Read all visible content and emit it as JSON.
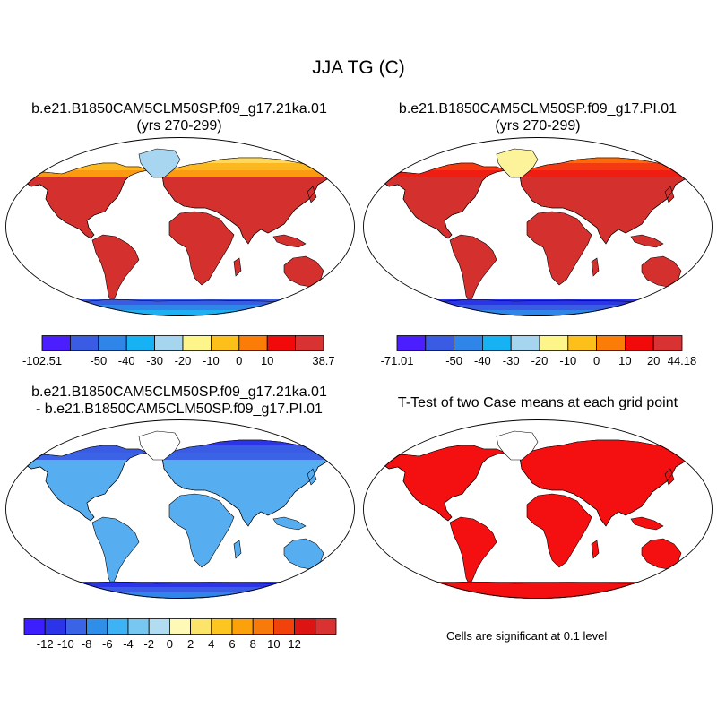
{
  "figure": {
    "title": "JJA TG (C)"
  },
  "panels": {
    "top_left": {
      "title_line1": "b.e21.B1850CAM5CLM50SP.f09_g17.21ka.01",
      "title_line2": "(yrs 270-299)"
    },
    "top_right": {
      "title_line1": "b.e21.B1850CAM5CLM50SP.f09_g17.PI.01",
      "title_line2": "(yrs 270-299)"
    },
    "bottom_left": {
      "title_line1": "b.e21.B1850CAM5CLM50SP.f09_g17.21ka.01",
      "title_line2": "- b.e21.B1850CAM5CLM50SP.f09_g17.PI.01"
    },
    "bottom_right": {
      "title_line1": "T-Test of two Case means at each grid point",
      "note": "Cells are significant at 0.1 level"
    }
  },
  "colorbars": {
    "top_left": {
      "colors": [
        "#4a1eff",
        "#3a5be3",
        "#2f86e8",
        "#16b2f4",
        "#a6d5f0",
        "#fdf58a",
        "#fdbf1a",
        "#fb7d08",
        "#f20a0a",
        "#d83232"
      ],
      "labels": [
        "-102.51",
        "-50",
        "-40",
        "-30",
        "-20",
        "-10",
        "0",
        "10",
        "38.7"
      ],
      "label_edges": [
        0,
        2,
        3,
        4,
        5,
        6,
        7,
        8,
        10
      ]
    },
    "top_right": {
      "colors": [
        "#4a1eff",
        "#3a5be3",
        "#2f86e8",
        "#16b2f4",
        "#a6d5f0",
        "#fdf58a",
        "#fdbf1a",
        "#fb7d08",
        "#f20a0a",
        "#d83232"
      ],
      "labels": [
        "-71.01",
        "-50",
        "-40",
        "-30",
        "-20",
        "-10",
        "0",
        "10",
        "20",
        "44.18"
      ],
      "label_edges": [
        0,
        2,
        3,
        4,
        5,
        6,
        7,
        8,
        9,
        10
      ]
    },
    "bottom_left": {
      "colors": [
        "#3d1eff",
        "#2b34e6",
        "#3b63e6",
        "#2f8ee8",
        "#3db2f5",
        "#77c7f0",
        "#b2dcf2",
        "#fef9b6",
        "#fce46a",
        "#fdc51f",
        "#fca10b",
        "#f87a0a",
        "#f2420c",
        "#dc1414",
        "#d83232"
      ],
      "labels": [
        "-12",
        "-10",
        "-8",
        "-6",
        "-4",
        "-2",
        "0",
        "2",
        "4",
        "6",
        "8",
        "10",
        "12"
      ],
      "label_edges": [
        1,
        2,
        3,
        4,
        5,
        6,
        7,
        8,
        9,
        10,
        11,
        12,
        13
      ]
    }
  },
  "maps": {
    "top_left": {
      "ocean": "#ffffff",
      "land": "#d4302e",
      "north": [
        "#fb9a10",
        "#fbb820",
        "#fdd860",
        "#fbe98a"
      ],
      "antarctica": [
        "#3a5be3",
        "#2f86e8",
        "#1fb0f2"
      ],
      "greenland": "#a8d6f0"
    },
    "top_right": {
      "ocean": "#ffffff",
      "land": "#d4302e",
      "north": [
        "#ef1d12",
        "#f43a10",
        "#f86a0a",
        "#fb8a0a"
      ],
      "antarctica": [
        "#2b34e6",
        "#3a5be3",
        "#2f86e8"
      ],
      "greenland": "#fdf39b"
    },
    "bottom_left": {
      "ocean": "#ffffff",
      "land": "#56aef0",
      "north": [
        "#3b63e6",
        "#3a5be3",
        "#2b34e6",
        "#2f86e8"
      ],
      "antarctica": [
        "#2b34e6",
        "#3a5be3",
        "#2f86e8"
      ],
      "greenland": "#ffffff"
    },
    "bottom_right": {
      "ocean": "#ffffff",
      "land": "#f40f10",
      "north": [
        "#f40f10",
        "#f40f10",
        "#f40f10",
        "#f40f10"
      ],
      "antarctica": [
        "#f40f10",
        "#f40f10",
        "#f40f10"
      ],
      "greenland": "#ffffff"
    }
  }
}
